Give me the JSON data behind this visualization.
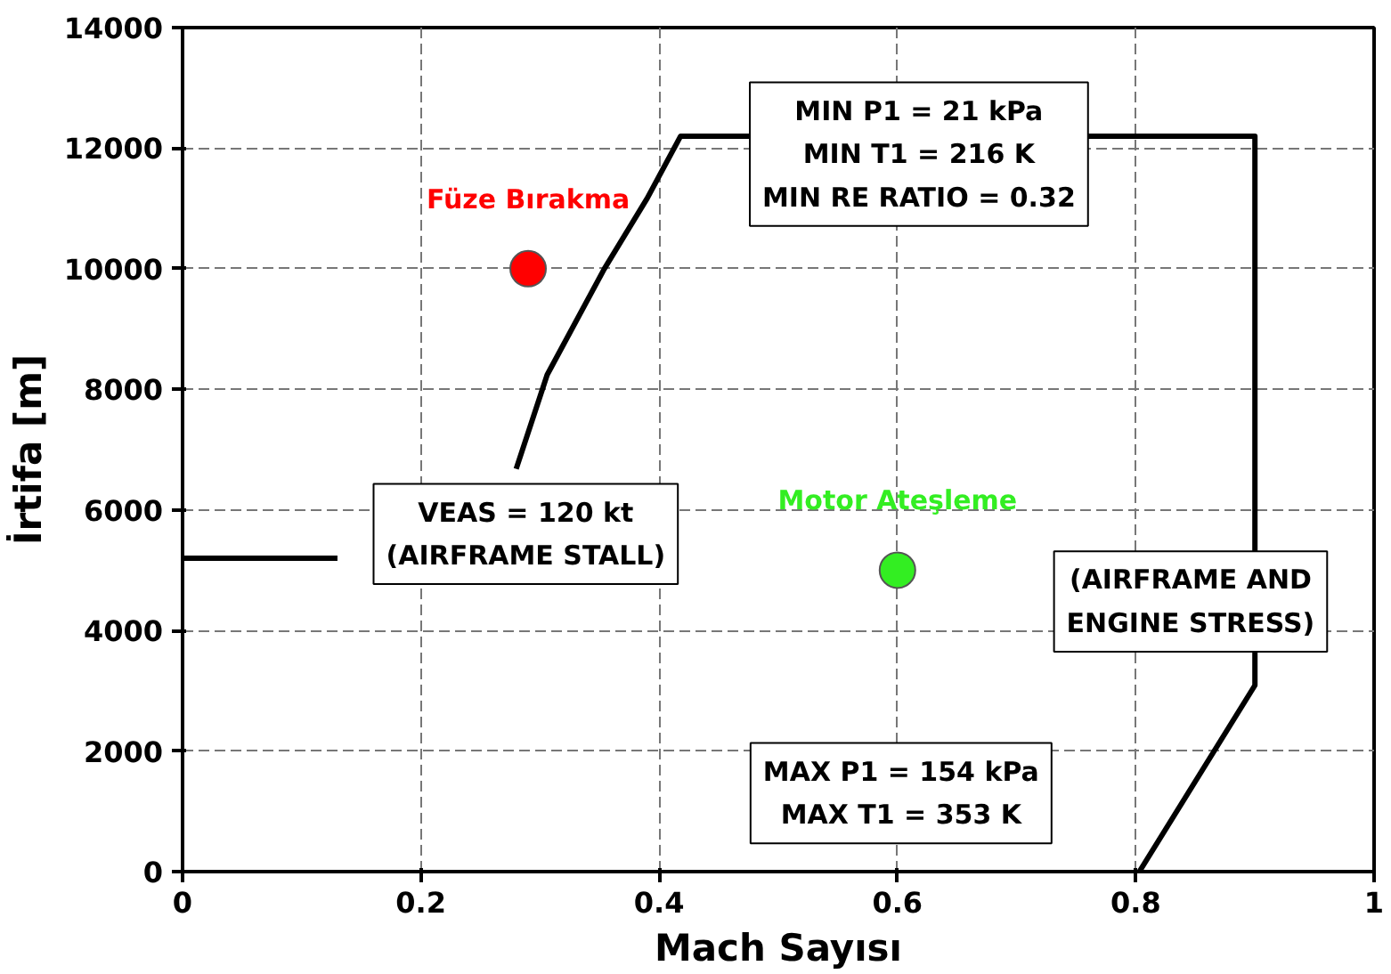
{
  "chart_data": {
    "type": "line",
    "xlabel": "Mach Sayısı",
    "ylabel": "İrtifa [m]",
    "xlim": [
      0,
      1
    ],
    "ylim": [
      0,
      14000
    ],
    "xticks": [
      0,
      0.2,
      0.4,
      0.6,
      0.8,
      1
    ],
    "yticks": [
      0,
      2000,
      4000,
      6000,
      8000,
      10000,
      12000,
      14000
    ],
    "grid": true,
    "marker": "circle",
    "line_style": "solid",
    "series": [
      {
        "color": "#000000",
        "marker": "none",
        "x": [
          0,
          0.13,
          null,
          0.28,
          0.306,
          0.354,
          0.39,
          0.418,
          0.9,
          0.9,
          0.803
        ],
        "values": [
          5200,
          5200,
          null,
          6680,
          8240,
          10000,
          11170,
          12200,
          12200,
          3090,
          0
        ]
      },
      {
        "name": "Füze Bırakma",
        "type": "scatter",
        "color": "#ff0000",
        "x": [
          0.29
        ],
        "values": [
          10000
        ]
      },
      {
        "name": "Motor Ateşleme",
        "type": "scatter",
        "color": "#33ee22",
        "x": [
          0.6
        ],
        "values": [
          5000
        ]
      }
    ],
    "annotations": [
      "MIN P1 = 21 kPa\nMIN T1 = 216 K\nMIN RE RATIO = 0.32",
      "VEAS = 120 kt\n(AIRFRAME STALL)",
      "(AIRFRAME AND\nENGINE STRESS)",
      "MAX P1 = 154 kPa\nMAX T1 = 353 K"
    ]
  }
}
